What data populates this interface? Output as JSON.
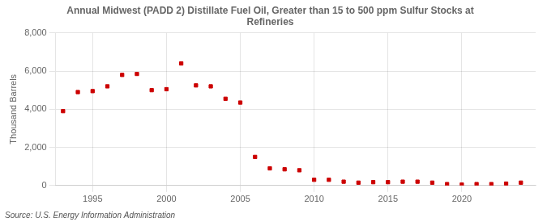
{
  "chart_data": {
    "type": "scatter",
    "title": "Annual Midwest (PADD 2) Distillate Fuel Oil, Greater than 15 to 500 ppm Sulfur Stocks at\nRefineries",
    "ylabel": "Thousand Barrels",
    "source": "Source: U.S. Energy Information Administration",
    "x": [
      1993,
      1994,
      1995,
      1996,
      1997,
      1998,
      1999,
      2000,
      2001,
      2002,
      2003,
      2004,
      2005,
      2006,
      2007,
      2008,
      2009,
      2010,
      2011,
      2012,
      2013,
      2014,
      2015,
      2016,
      2017,
      2018,
      2019,
      2020,
      2021,
      2022,
      2023,
      2024
    ],
    "values": [
      3900,
      4900,
      4950,
      5200,
      5800,
      5850,
      5000,
      5050,
      6400,
      5250,
      5200,
      4550,
      4350,
      1500,
      900,
      850,
      800,
      300,
      300,
      200,
      150,
      175,
      175,
      200,
      200,
      150,
      75,
      50,
      75,
      75,
      100,
      150
    ],
    "color": "#cc0000",
    "marker": "square",
    "xlim": [
      1992.5,
      2025
    ],
    "xticks": [
      1995,
      2000,
      2005,
      2010,
      2015,
      2020
    ],
    "ylim": [
      0,
      8000
    ],
    "yticks": [
      0,
      {
        "value": 2000,
        "label": "2,000"
      },
      {
        "value": 4000,
        "label": "4,000"
      },
      {
        "value": 6000,
        "label": "6,000"
      },
      {
        "value": 8000,
        "label": "8,000"
      }
    ],
    "grid": true
  }
}
